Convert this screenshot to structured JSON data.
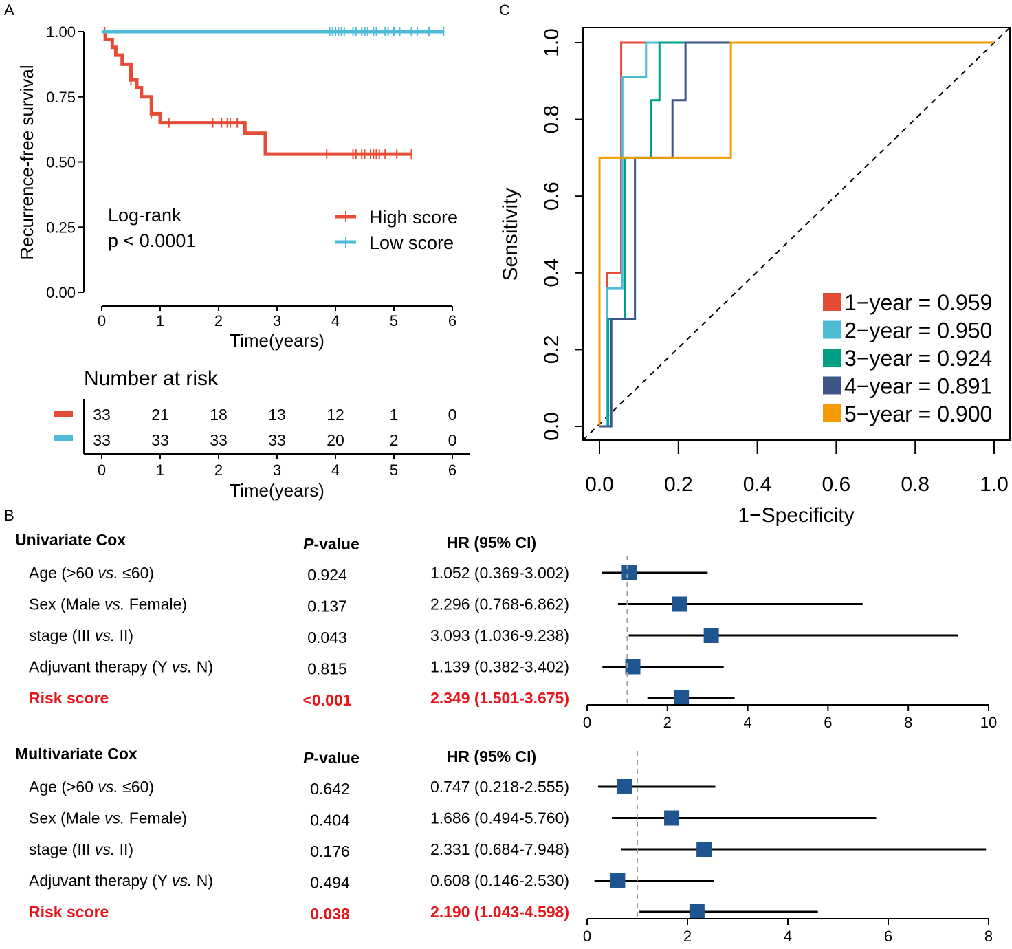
{
  "panel_labels": {
    "a": "A",
    "b": "B",
    "c": "C"
  },
  "chart_data": [
    {
      "type": "line",
      "title": "",
      "xlabel": "Time(years)",
      "ylabel": "Recurrence-free survival",
      "xlim": [
        0,
        6
      ],
      "ylim": [
        0,
        1
      ],
      "xticks": [
        "0",
        "1",
        "2",
        "3",
        "4",
        "5",
        "6"
      ],
      "yticks": [
        "0.00",
        "0.25",
        "0.50",
        "0.75",
        "1.00"
      ],
      "annotation": {
        "line1": "Log-rank",
        "line2": "p < 0.0001"
      },
      "series": [
        {
          "name": "High score",
          "color": "#E64B35",
          "steps": [
            [
              0,
              1.0
            ],
            [
              0.06,
              0.97
            ],
            [
              0.18,
              0.94
            ],
            [
              0.24,
              0.91
            ],
            [
              0.35,
              0.875
            ],
            [
              0.5,
              0.815
            ],
            [
              0.6,
              0.785
            ],
            [
              0.68,
              0.75
            ],
            [
              0.85,
              0.685
            ],
            [
              1.0,
              0.65
            ],
            [
              2.45,
              0.61
            ],
            [
              2.8,
              0.53
            ],
            [
              5.3,
              0.53
            ]
          ],
          "censors": [
            0.05,
            0.5,
            0.85,
            1.15,
            1.9,
            2.05,
            2.15,
            2.2,
            2.32,
            3.85,
            4.3,
            4.35,
            4.45,
            4.5,
            4.6,
            4.65,
            4.7,
            4.75,
            4.85,
            5.05,
            5.3
          ]
        },
        {
          "name": "Low score",
          "color": "#4DBBD5",
          "steps": [
            [
              0,
              1.0
            ],
            [
              5.85,
              1.0
            ]
          ],
          "censors": [
            3.9,
            3.95,
            4.0,
            4.05,
            4.1,
            4.15,
            4.3,
            4.35,
            4.45,
            4.5,
            4.55,
            4.65,
            4.7,
            4.85,
            4.9,
            5.0,
            5.1,
            5.3,
            5.4,
            5.6,
            5.85
          ]
        }
      ]
    },
    {
      "type": "table",
      "title": "Number at risk",
      "xlabel": "Time(years)",
      "xticks": [
        "0",
        "1",
        "2",
        "3",
        "4",
        "5",
        "6"
      ],
      "rows": [
        {
          "name": "High score",
          "color": "#E64B35",
          "values": [
            "33",
            "21",
            "18",
            "13",
            "12",
            "1",
            "0"
          ]
        },
        {
          "name": "Low score",
          "color": "#4DBBD5",
          "values": [
            "33",
            "33",
            "33",
            "33",
            "20",
            "2",
            "0"
          ]
        }
      ]
    },
    {
      "type": "line",
      "title": "",
      "xlabel": "1−Specificity",
      "ylabel": "Sensitivity",
      "xlim": [
        0,
        1
      ],
      "ylim": [
        0,
        1
      ],
      "xticks": [
        "0.0",
        "0.2",
        "0.4",
        "0.6",
        "0.8",
        "1.0"
      ],
      "yticks": [
        "0.0",
        "0.2",
        "0.4",
        "0.6",
        "0.8",
        "1.0"
      ],
      "series": [
        {
          "name": "1−year = 0.959",
          "color": "#E64B35",
          "points": [
            [
              0,
              0
            ],
            [
              0.02,
              0
            ],
            [
              0.02,
              0.4
            ],
            [
              0.055,
              0.4
            ],
            [
              0.055,
              1.0
            ],
            [
              0.115,
              1.0
            ],
            [
              1.0,
              1.0
            ]
          ]
        },
        {
          "name": "2−year = 0.950",
          "color": "#4DBBD5",
          "points": [
            [
              0,
              0
            ],
            [
              0.02,
              0
            ],
            [
              0.02,
              0.36
            ],
            [
              0.058,
              0.36
            ],
            [
              0.058,
              0.91
            ],
            [
              0.118,
              0.91
            ],
            [
              0.118,
              1.0
            ],
            [
              1.0,
              1.0
            ]
          ]
        },
        {
          "name": "3−year = 0.924",
          "color": "#00A087",
          "points": [
            [
              0,
              0
            ],
            [
              0.022,
              0
            ],
            [
              0.022,
              0.28
            ],
            [
              0.065,
              0.28
            ],
            [
              0.065,
              0.7
            ],
            [
              0.13,
              0.7
            ],
            [
              0.13,
              0.85
            ],
            [
              0.152,
              0.85
            ],
            [
              0.152,
              1.0
            ],
            [
              1.0,
              1.0
            ]
          ]
        },
        {
          "name": "4−year = 0.891",
          "color": "#3C5488",
          "points": [
            [
              0,
              0
            ],
            [
              0.03,
              0
            ],
            [
              0.03,
              0.28
            ],
            [
              0.09,
              0.28
            ],
            [
              0.09,
              0.7
            ],
            [
              0.185,
              0.7
            ],
            [
              0.185,
              0.85
            ],
            [
              0.218,
              0.85
            ],
            [
              0.218,
              1.0
            ],
            [
              1.0,
              1.0
            ]
          ]
        },
        {
          "name": "5−year = 0.900",
          "color": "#F39B00",
          "points": [
            [
              0,
              0
            ],
            [
              0,
              0.7
            ],
            [
              0.333,
              0.7
            ],
            [
              0.333,
              1.0
            ],
            [
              1.0,
              1.0
            ]
          ]
        }
      ],
      "reference_line": "diagonal dashed"
    },
    {
      "type": "forest",
      "title": "Univariate Cox",
      "col_pvalue": "P-value",
      "col_hr": "HR (95% CI)",
      "xlim": [
        0,
        10
      ],
      "xticks": [
        "0",
        "2",
        "4",
        "6",
        "8",
        "10"
      ],
      "ref_line": 1,
      "rows": [
        {
          "label": "Age (>60 vs. ≤60)",
          "pvalue": "0.924",
          "hr_text": "1.052 (0.369-3.002)",
          "hr": 1.052,
          "lo": 0.369,
          "hi": 3.002,
          "highlight": false
        },
        {
          "label": "Sex (Male vs. Female)",
          "pvalue": "0.137",
          "hr_text": "2.296 (0.768-6.862)",
          "hr": 2.296,
          "lo": 0.768,
          "hi": 6.862,
          "highlight": false
        },
        {
          "label": "stage (III vs. II)",
          "pvalue": "0.043",
          "hr_text": "3.093 (1.036-9.238)",
          "hr": 3.093,
          "lo": 1.036,
          "hi": 9.238,
          "highlight": false
        },
        {
          "label": "Adjuvant therapy (Y vs. N)",
          "pvalue": "0.815",
          "hr_text": "1.139 (0.382-3.402)",
          "hr": 1.139,
          "lo": 0.382,
          "hi": 3.402,
          "highlight": false
        },
        {
          "label": "Risk score",
          "pvalue": "<0.001",
          "hr_text": "2.349 (1.501-3.675)",
          "hr": 2.349,
          "lo": 1.501,
          "hi": 3.675,
          "highlight": true
        }
      ]
    },
    {
      "type": "forest",
      "title": "Multivariate Cox",
      "col_pvalue": "P-value",
      "col_hr": "HR (95% CI)",
      "xlim": [
        0,
        8
      ],
      "xticks": [
        "0",
        "2",
        "4",
        "6",
        "8"
      ],
      "ref_line": 1,
      "rows": [
        {
          "label": "Age (>60 vs. ≤60)",
          "pvalue": "0.642",
          "hr_text": "0.747 (0.218-2.555)",
          "hr": 0.747,
          "lo": 0.218,
          "hi": 2.555,
          "highlight": false
        },
        {
          "label": "Sex (Male vs. Female)",
          "pvalue": "0.404",
          "hr_text": "1.686 (0.494-5.760)",
          "hr": 1.686,
          "lo": 0.494,
          "hi": 5.76,
          "highlight": false
        },
        {
          "label": "stage (III vs. II)",
          "pvalue": "0.176",
          "hr_text": "2.331 (0.684-7.948)",
          "hr": 2.331,
          "lo": 0.684,
          "hi": 7.948,
          "highlight": false
        },
        {
          "label": "Adjuvant therapy (Y vs. N)",
          "pvalue": "0.494",
          "hr_text": "0.608 (0.146-2.530)",
          "hr": 0.608,
          "lo": 0.146,
          "hi": 2.53,
          "highlight": false
        },
        {
          "label": "Risk score",
          "pvalue": "0.038",
          "hr_text": "2.190 (1.043-4.598)",
          "hr": 2.19,
          "lo": 1.043,
          "hi": 4.598,
          "highlight": true
        }
      ]
    }
  ],
  "colors": {
    "highlight_text": "#E8141A",
    "marker": "#1F5591",
    "ref_line": "#A0A0A0"
  }
}
